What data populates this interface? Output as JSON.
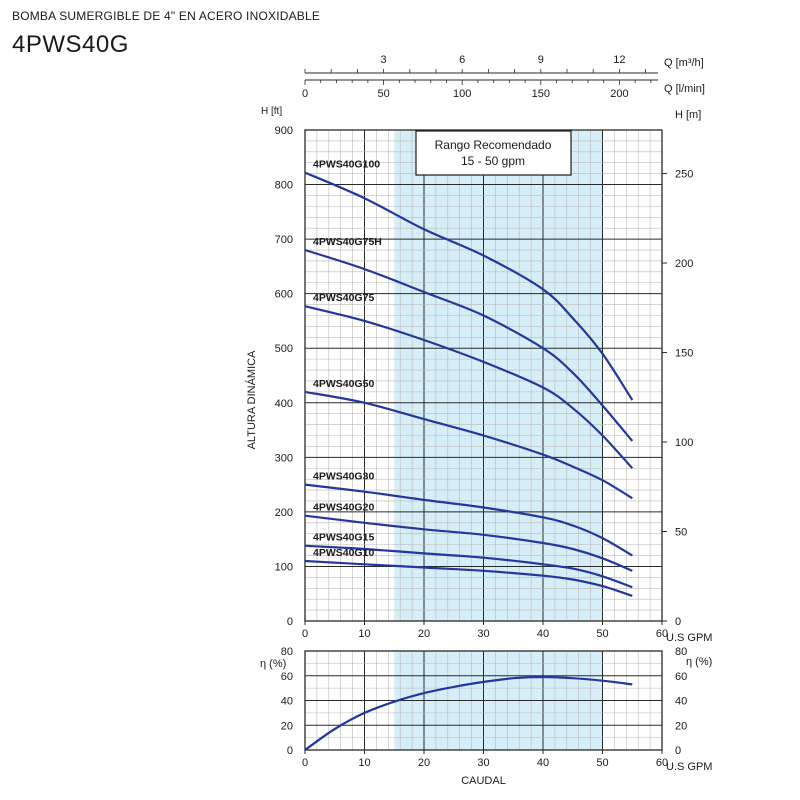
{
  "header": {
    "subtitle": "BOMBA SUMERGIBLE DE 4\" EN ACERO INOXIDABLE",
    "title": "4PWS40G"
  },
  "colors": {
    "curve": "#24379c",
    "band": "#d6eef7",
    "grid_minor": "#b9b9b9",
    "grid_major": "#2a2a2a"
  },
  "chart_data": [
    {
      "type": "line",
      "title": "",
      "xlabel": "U.S GPM",
      "ylabel": "ALTURA DINÁMICA",
      "xlim": [
        0,
        60
      ],
      "ylim": [
        0,
        900
      ],
      "x_ticks": [
        0,
        10,
        20,
        30,
        40,
        50,
        60
      ],
      "y_ticks": [
        0,
        100,
        200,
        300,
        400,
        500,
        600,
        700,
        800,
        900
      ],
      "y_unit_left": "H [ft]",
      "y_unit_right": "H [m]",
      "y_ticks_right": [
        0,
        50,
        100,
        150,
        200,
        250
      ],
      "top_axis_1": {
        "label": "Q [m³/h]",
        "ticks": [
          3,
          6,
          9,
          12
        ]
      },
      "top_axis_2": {
        "label": "Q [l/min]",
        "ticks": [
          0,
          50,
          100,
          150,
          200
        ]
      },
      "grid": true,
      "recommended_range": {
        "from": 15,
        "to": 50,
        "label_line1": "Rango Recomendado",
        "label_line2": "15 - 50 gpm"
      },
      "series": [
        {
          "name": "4PWS40G100",
          "x": [
            0,
            10,
            20,
            30,
            40,
            45,
            50,
            55
          ],
          "y": [
            822,
            775,
            718,
            670,
            608,
            555,
            490,
            405
          ]
        },
        {
          "name": "4PWS40G75H",
          "x": [
            0,
            10,
            20,
            30,
            40,
            45,
            50,
            55
          ],
          "y": [
            680,
            645,
            603,
            560,
            500,
            455,
            395,
            330
          ]
        },
        {
          "name": "4PWS40G75",
          "x": [
            0,
            10,
            20,
            30,
            40,
            45,
            50,
            55
          ],
          "y": [
            577,
            550,
            515,
            475,
            428,
            390,
            340,
            280
          ]
        },
        {
          "name": "4PWS40G50",
          "x": [
            0,
            10,
            20,
            30,
            40,
            45,
            50,
            55
          ],
          "y": [
            420,
            400,
            370,
            340,
            305,
            283,
            258,
            225
          ]
        },
        {
          "name": "4PWS40G30",
          "x": [
            0,
            10,
            20,
            30,
            40,
            45,
            50,
            55
          ],
          "y": [
            250,
            237,
            222,
            208,
            190,
            175,
            152,
            120
          ]
        },
        {
          "name": "4PWS40G20",
          "x": [
            0,
            10,
            20,
            30,
            40,
            45,
            50,
            55
          ],
          "y": [
            193,
            180,
            168,
            158,
            143,
            132,
            115,
            92
          ]
        },
        {
          "name": "4PWS40G15",
          "x": [
            0,
            10,
            20,
            30,
            40,
            45,
            50,
            55
          ],
          "y": [
            138,
            132,
            124,
            116,
            104,
            96,
            82,
            62
          ]
        },
        {
          "name": "4PWS40G10",
          "x": [
            0,
            10,
            20,
            30,
            40,
            45,
            50,
            55
          ],
          "y": [
            110,
            104,
            98,
            92,
            83,
            76,
            64,
            46
          ]
        }
      ]
    },
    {
      "type": "line",
      "title": "",
      "xlabel": "CAUDAL",
      "x_unit": "U.S GPM",
      "ylabel": "η (%)",
      "xlim": [
        0,
        60
      ],
      "ylim": [
        0,
        80
      ],
      "x_ticks": [
        0,
        10,
        20,
        30,
        40,
        50,
        60
      ],
      "y_ticks": [
        0,
        20,
        40,
        60,
        80
      ],
      "grid": true,
      "recommended_range": {
        "from": 15,
        "to": 50
      },
      "series": [
        {
          "name": "",
          "x": [
            0,
            5,
            10,
            15,
            20,
            25,
            30,
            35,
            40,
            45,
            50,
            55
          ],
          "y": [
            0,
            17,
            30,
            39,
            46,
            51,
            55,
            58,
            59,
            58,
            56,
            53
          ]
        }
      ]
    }
  ]
}
